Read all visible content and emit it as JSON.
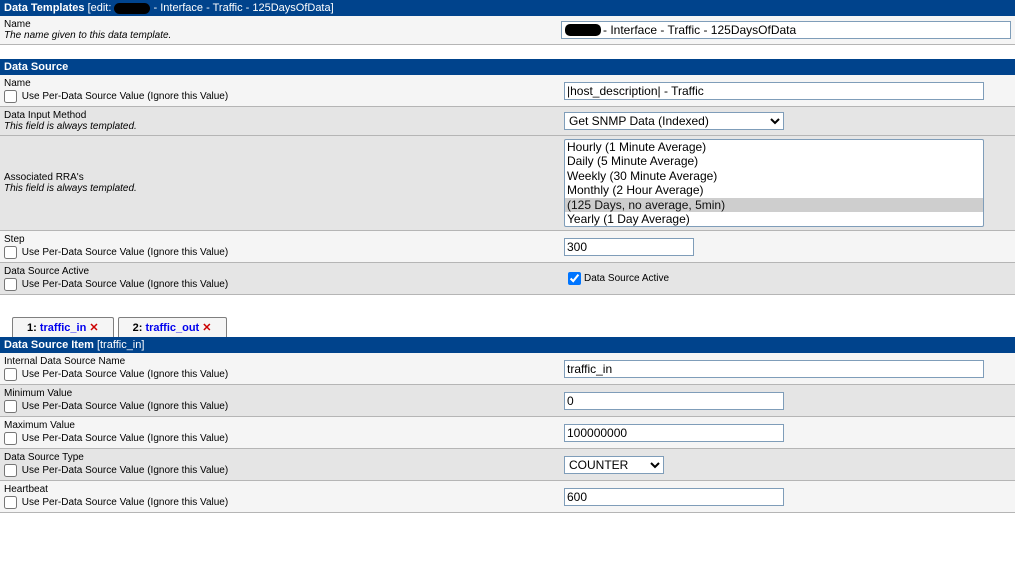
{
  "templates_header": {
    "title": "Data Templates",
    "subtitle_prefix": "[edit: ",
    "subtitle_suffix": " - Interface - Traffic - 125DaysOfData]"
  },
  "name_row": {
    "label": "Name",
    "desc": "The name given to this data template.",
    "value_suffix": " - Interface - Traffic - 125DaysOfData"
  },
  "ds_header": "Data Source",
  "ds_name": {
    "label": "Name",
    "cb_label": "Use Per-Data Source Value (Ignore this Value)",
    "value": "|host_description| - Traffic"
  },
  "input_method": {
    "label": "Data Input Method",
    "desc": "This field is always templated.",
    "value": "Get SNMP Data (Indexed)"
  },
  "rras": {
    "label": "Associated RRA's",
    "desc": "This field is always templated.",
    "options": [
      "Hourly (1 Minute Average)",
      "Daily (5 Minute Average)",
      "Weekly (30 Minute Average)",
      "Monthly (2 Hour Average)",
      "        (125 Days, no average, 5min)",
      "Yearly (1 Day Average)"
    ],
    "selected_index": 4
  },
  "step": {
    "label": "Step",
    "cb_label": "Use Per-Data Source Value (Ignore this Value)",
    "value": "300"
  },
  "active": {
    "label": "Data Source Active",
    "cb_label": "Use Per-Data Source Value (Ignore this Value)",
    "right_cb_label": "Data Source Active"
  },
  "tabs": {
    "t1_num": "1: ",
    "t1_name": "traffic_in",
    "t2_num": "2: ",
    "t2_name": "traffic_out",
    "x": "✕"
  },
  "dsi_header": {
    "title": "Data Source Item",
    "subtitle": "[traffic_in]"
  },
  "dsi": {
    "internal": {
      "label": "Internal Data Source Name",
      "cb_label": "Use Per-Data Source Value (Ignore this Value)",
      "value": "traffic_in"
    },
    "min": {
      "label": "Minimum Value",
      "cb_label": "Use Per-Data Source Value (Ignore this Value)",
      "value": "0"
    },
    "max": {
      "label": "Maximum Value",
      "cb_label": "Use Per-Data Source Value (Ignore this Value)",
      "value": "100000000"
    },
    "type": {
      "label": "Data Source Type",
      "cb_label": "Use Per-Data Source Value (Ignore this Value)",
      "value": "COUNTER"
    },
    "hb": {
      "label": "Heartbeat",
      "cb_label": "Use Per-Data Source Value (Ignore this Value)",
      "value": "600"
    }
  },
  "styling": {
    "header_bg": "#00438c",
    "row_light": "#f5f5f5",
    "row_dark": "#e5e5e5",
    "border": "#b5b5b5",
    "link_color": "#0000ee",
    "x_color": "#cc0000"
  }
}
